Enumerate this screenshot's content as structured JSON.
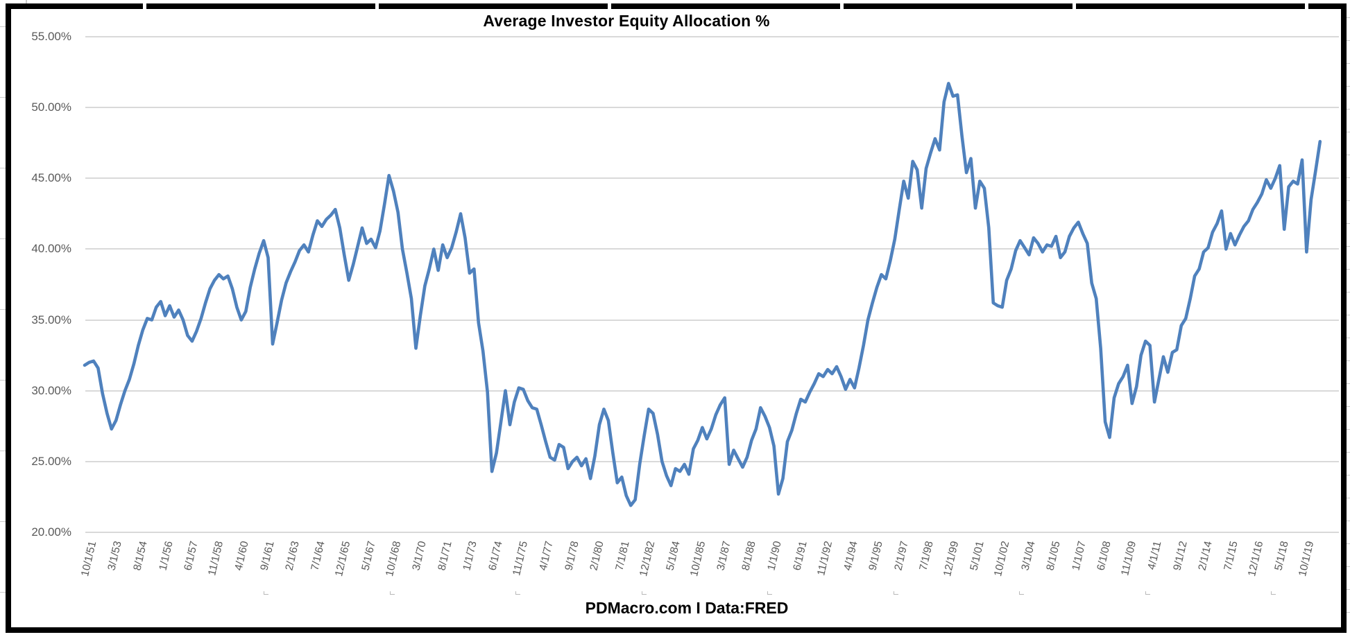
{
  "chart": {
    "frame_color": "#000000",
    "background": "#ffffff",
    "gridline_color": "#d9d9d9",
    "label_color": "#595959",
    "accent_line_color": "#4F81BD"
  },
  "chart_data": {
    "type": "line",
    "title": "Average Investor Equity Allocation %",
    "xlabel": "PDMacro.com I Data:FRED",
    "ylabel": "",
    "frequency": "quarterly",
    "x_start": "10/1/51",
    "x_end": "10/1/20",
    "ylim": [
      20,
      55
    ],
    "ytick_step": 5,
    "grid": "horizontal",
    "legend": "none",
    "yticks": [
      "20.00%",
      "25.00%",
      "30.00%",
      "35.00%",
      "40.00%",
      "45.00%",
      "50.00%",
      "55.00%"
    ],
    "x_tick_labels": [
      "10/1/51",
      "3/1/53",
      "8/1/54",
      "1/1/56",
      "6/1/57",
      "11/1/58",
      "4/1/60",
      "9/1/61",
      "2/1/63",
      "7/1/64",
      "12/1/65",
      "5/1/67",
      "10/1/68",
      "3/1/70",
      "8/1/71",
      "1/1/73",
      "6/1/74",
      "11/1/75",
      "4/1/77",
      "9/1/78",
      "2/1/80",
      "7/1/81",
      "12/1/82",
      "5/1/84",
      "10/1/85",
      "3/1/87",
      "8/1/88",
      "1/1/90",
      "6/1/91",
      "11/1/92",
      "4/1/94",
      "9/1/95",
      "2/1/97",
      "7/1/98",
      "12/1/99",
      "5/1/01",
      "10/1/02",
      "3/1/04",
      "8/1/05",
      "1/1/07",
      "6/1/08",
      "11/1/09",
      "4/1/11",
      "9/1/12",
      "2/1/14",
      "7/1/15",
      "12/1/16",
      "5/1/18",
      "10/1/19"
    ],
    "series": [
      {
        "name": "Average Investor Equity Allocation %",
        "color": "#4F81BD",
        "values": [
          31.8,
          32.0,
          32.1,
          31.6,
          29.8,
          28.4,
          27.3,
          27.9,
          29.0,
          30.0,
          30.8,
          31.9,
          33.2,
          34.3,
          35.1,
          35.0,
          35.9,
          36.3,
          35.3,
          36.0,
          35.2,
          35.7,
          35.0,
          33.9,
          33.5,
          34.2,
          35.1,
          36.2,
          37.2,
          37.8,
          38.2,
          37.9,
          38.1,
          37.2,
          35.9,
          35.0,
          35.6,
          37.3,
          38.6,
          39.7,
          40.6,
          39.4,
          33.3,
          34.8,
          36.4,
          37.6,
          38.4,
          39.1,
          39.9,
          40.3,
          39.8,
          41.0,
          42.0,
          41.6,
          42.1,
          42.4,
          42.8,
          41.5,
          39.6,
          37.8,
          38.9,
          40.2,
          41.5,
          40.4,
          40.7,
          40.1,
          41.3,
          43.2,
          45.2,
          44.1,
          42.6,
          40.0,
          38.3,
          36.5,
          33.0,
          35.3,
          37.4,
          38.6,
          40.0,
          38.5,
          40.3,
          39.4,
          40.1,
          41.2,
          42.5,
          40.8,
          38.3,
          38.6,
          34.8,
          32.8,
          29.9,
          24.3,
          25.6,
          27.8,
          30.0,
          27.6,
          29.2,
          30.2,
          30.1,
          29.3,
          28.8,
          28.7,
          27.6,
          26.4,
          25.3,
          25.1,
          26.2,
          26.0,
          24.5,
          25.0,
          25.3,
          24.7,
          25.2,
          23.8,
          25.4,
          27.6,
          28.7,
          27.9,
          25.6,
          23.5,
          23.9,
          22.6,
          21.9,
          22.3,
          24.8,
          26.8,
          28.7,
          28.4,
          26.9,
          25.0,
          24.0,
          23.3,
          24.5,
          24.3,
          24.8,
          24.1,
          25.9,
          26.5,
          27.4,
          26.6,
          27.3,
          28.3,
          29.0,
          29.5,
          24.8,
          25.8,
          25.2,
          24.6,
          25.3,
          26.5,
          27.3,
          28.8,
          28.2,
          27.4,
          26.1,
          22.7,
          23.8,
          26.4,
          27.2,
          28.4,
          29.4,
          29.2,
          29.9,
          30.5,
          31.2,
          31.0,
          31.5,
          31.2,
          31.7,
          31.0,
          30.1,
          30.8,
          30.2,
          31.6,
          33.2,
          35.0,
          36.2,
          37.3,
          38.2,
          37.9,
          39.2,
          40.7,
          42.8,
          44.8,
          43.6,
          46.2,
          45.6,
          42.9,
          45.7,
          46.8,
          47.8,
          47.0,
          50.4,
          51.7,
          50.8,
          50.9,
          48.0,
          45.4,
          46.4,
          42.9,
          44.8,
          44.3,
          41.5,
          36.2,
          36.0,
          35.9,
          37.8,
          38.6,
          39.9,
          40.6,
          40.1,
          39.6,
          40.8,
          40.4,
          39.8,
          40.3,
          40.2,
          40.9,
          39.4,
          39.8,
          40.9,
          41.5,
          41.9,
          41.1,
          40.4,
          37.6,
          36.5,
          33.0,
          27.8,
          26.7,
          29.5,
          30.5,
          31.0,
          31.8,
          29.1,
          30.3,
          32.5,
          33.5,
          33.2,
          29.2,
          30.8,
          32.4,
          31.3,
          32.7,
          32.9,
          34.6,
          35.1,
          36.5,
          38.1,
          38.6,
          39.8,
          40.1,
          41.2,
          41.8,
          42.7,
          40.0,
          41.1,
          40.3,
          41.0,
          41.6,
          42.0,
          42.8,
          43.3,
          43.9,
          44.9,
          44.3,
          45.0,
          45.9,
          41.4,
          44.4,
          44.8,
          44.6,
          46.3,
          39.8,
          43.5,
          45.5,
          47.6
        ]
      }
    ]
  }
}
